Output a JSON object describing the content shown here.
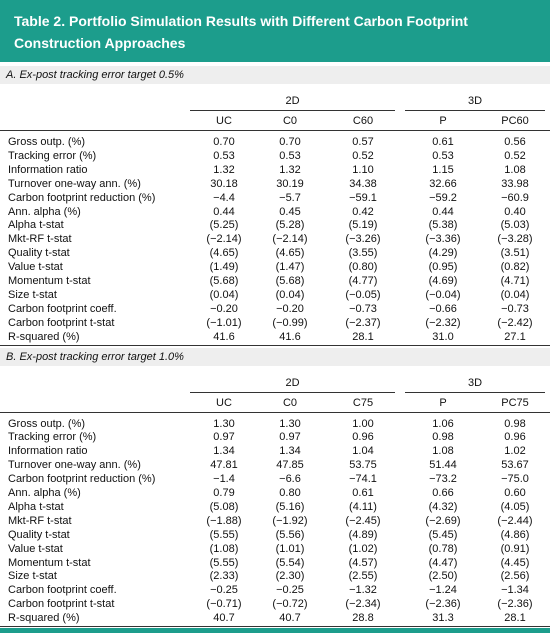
{
  "header": {
    "title": [
      "Table 2.  Portfolio Simulation Results with Different Carbon Footprint",
      "Construction Approaches"
    ]
  },
  "panels": [
    {
      "label": "A. Ex-post tracking error target 0.5%",
      "groups": [
        {
          "label": "2D",
          "columns": [
            "UC",
            "C0",
            "C60"
          ]
        },
        {
          "label": "3D",
          "columns": [
            "P",
            "PC60"
          ]
        }
      ],
      "rows": [
        [
          "Gross outp. (%)",
          "0.70",
          "0.70",
          "0.57",
          "0.61",
          "0.56"
        ],
        [
          "Tracking error (%)",
          "0.53",
          "0.53",
          "0.52",
          "0.53",
          "0.52"
        ],
        [
          "Information ratio",
          "1.32",
          "1.32",
          "1.10",
          "1.15",
          "1.08"
        ],
        [
          "Turnover one-way ann. (%)",
          "30.18",
          "30.19",
          "34.38",
          "32.66",
          "33.98"
        ],
        [
          "Carbon footprint reduction (%)",
          "−4.4",
          "−5.7",
          "−59.1",
          "−59.2",
          "−60.9"
        ],
        [
          "Ann. alpha (%)",
          "0.44",
          "0.45",
          "0.42",
          "0.44",
          "0.40"
        ],
        [
          "Alpha t-stat",
          "(5.25)",
          "(5.28)",
          "(5.19)",
          "(5.38)",
          "(5.03)"
        ],
        [
          "Mkt-RF t-stat",
          "(−2.14)",
          "(−2.14)",
          "(−3.26)",
          "(−3.36)",
          "(−3.28)"
        ],
        [
          "Quality t-stat",
          "(4.65)",
          "(4.65)",
          "(3.55)",
          "(4.29)",
          "(3.51)"
        ],
        [
          "Value t-stat",
          "(1.49)",
          "(1.47)",
          "(0.80)",
          "(0.95)",
          "(0.82)"
        ],
        [
          "Momentum t-stat",
          "(5.68)",
          "(5.68)",
          "(4.77)",
          "(4.69)",
          "(4.71)"
        ],
        [
          "Size t-stat",
          "(0.04)",
          "(0.04)",
          "(−0.05)",
          "(−0.04)",
          "(0.04)"
        ],
        [
          "Carbon footprint coeff.",
          "−0.20",
          "−0.20",
          "−0.73",
          "−0.66",
          "−0.73"
        ],
        [
          "Carbon footprint t-stat",
          "(−1.01)",
          "(−0.99)",
          "(−2.37)",
          "(−2.32)",
          "(−2.42)"
        ],
        [
          "R-squared (%)",
          "41.6",
          "41.6",
          "28.1",
          "31.0",
          "27.1"
        ]
      ]
    },
    {
      "label": "B. Ex-post tracking error target 1.0%",
      "groups": [
        {
          "label": "2D",
          "columns": [
            "UC",
            "C0",
            "C75"
          ]
        },
        {
          "label": "3D",
          "columns": [
            "P",
            "PC75"
          ]
        }
      ],
      "rows": [
        [
          "Gross outp. (%)",
          "1.30",
          "1.30",
          "1.00",
          "1.06",
          "0.98"
        ],
        [
          "Tracking error (%)",
          "0.97",
          "0.97",
          "0.96",
          "0.98",
          "0.96"
        ],
        [
          "Information ratio",
          "1.34",
          "1.34",
          "1.04",
          "1.08",
          "1.02"
        ],
        [
          "Turnover one-way ann. (%)",
          "47.81",
          "47.85",
          "53.75",
          "51.44",
          "53.67"
        ],
        [
          "Carbon footprint reduction (%)",
          "−1.4",
          "−6.6",
          "−74.1",
          "−73.2",
          "−75.0"
        ],
        [
          "Ann. alpha (%)",
          "0.79",
          "0.80",
          "0.61",
          "0.66",
          "0.60"
        ],
        [
          "Alpha t-stat",
          "(5.08)",
          "(5.16)",
          "(4.11)",
          "(4.32)",
          "(4.05)"
        ],
        [
          "Mkt-RF t-stat",
          "(−1.88)",
          "(−1.92)",
          "(−2.45)",
          "(−2.69)",
          "(−2.44)"
        ],
        [
          "Quality t-stat",
          "(5.55)",
          "(5.56)",
          "(4.89)",
          "(5.45)",
          "(4.86)"
        ],
        [
          "Value t-stat",
          "(1.08)",
          "(1.01)",
          "(1.02)",
          "(0.78)",
          "(0.91)"
        ],
        [
          "Momentum t-stat",
          "(5.55)",
          "(5.54)",
          "(4.57)",
          "(4.47)",
          "(4.45)"
        ],
        [
          "Size t-stat",
          "(2.33)",
          "(2.30)",
          "(2.55)",
          "(2.50)",
          "(2.56)"
        ],
        [
          "Carbon footprint coeff.",
          "−0.25",
          "−0.25",
          "−1.32",
          "−1.24",
          "−1.34"
        ],
        [
          "Carbon footprint t-stat",
          "(−0.71)",
          "(−0.72)",
          "(−2.34)",
          "(−2.36)",
          "(−2.36)"
        ],
        [
          "R-squared (%)",
          "40.7",
          "40.7",
          "28.8",
          "31.3",
          "28.1"
        ]
      ]
    }
  ]
}
